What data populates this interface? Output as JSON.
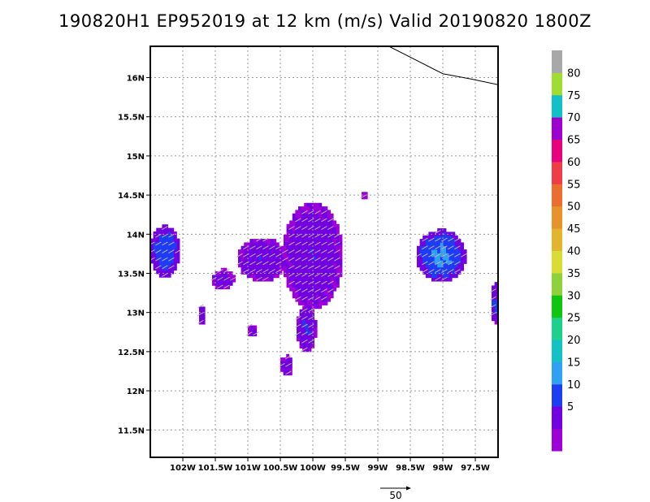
{
  "title": "190820H1 EP952019 at 12 km (m/s) Valid 20190820  1800Z",
  "chart_data": {
    "type": "heatmap",
    "title": "190820H1 EP952019 at 12 km (m/s) Valid 20190820  1800Z",
    "xlabel": "",
    "ylabel": "",
    "x_axis": {
      "unit": "longitude",
      "ticks": [
        -102,
        -101.5,
        -101,
        -100.5,
        -100,
        -99.5,
        -99,
        -98.5,
        -98,
        -97.5
      ],
      "tick_labels": [
        "102W",
        "101.5W",
        "101W",
        "100.5W",
        "100W",
        "99.5W",
        "99W",
        "98.5W",
        "98W",
        "97.5W"
      ],
      "range": [
        -102.5,
        -97.15
      ]
    },
    "y_axis": {
      "unit": "latitude",
      "ticks": [
        11.5,
        12,
        12.5,
        13,
        13.5,
        14,
        14.5,
        15,
        15.5,
        16
      ],
      "tick_labels": [
        "11.5N",
        "12N",
        "12.5N",
        "13N",
        "13.5N",
        "14N",
        "14.5N",
        "15N",
        "15.5N",
        "16N"
      ],
      "range": [
        11.15,
        16.4
      ]
    },
    "grid": true,
    "colorbar": {
      "labels": [
        "5",
        "10",
        "15",
        "20",
        "25",
        "30",
        "35",
        "40",
        "45",
        "50",
        "55",
        "60",
        "65",
        "70",
        "75",
        "80"
      ],
      "bounds": [
        5,
        10,
        15,
        20,
        25,
        30,
        35,
        40,
        45,
        50,
        55,
        60,
        65,
        70,
        75,
        80
      ],
      "colors": [
        "#9e00d8",
        "#7200e0",
        "#1f3cf5",
        "#2fa1f5",
        "#13c3c3",
        "#1ed08d",
        "#0fc60f",
        "#8ed23a",
        "#d8dc33",
        "#e4b42c",
        "#e8922a",
        "#ec6e2e",
        "#f03c46",
        "#e8007c",
        "#9e00d0",
        "#12c0c8",
        "#a0dc32",
        "#a8a8a8"
      ],
      "placement": "right"
    },
    "reference_vector": {
      "label": "50"
    },
    "wind_regions": [
      {
        "lon_min": -102.5,
        "lon_max": -102.05,
        "lat_min": 13.45,
        "lat_max": 14.1,
        "max_speed": 14
      },
      {
        "lon_min": -101.15,
        "lon_max": -100.4,
        "lat_min": 13.4,
        "lat_max": 13.95,
        "max_speed": 9
      },
      {
        "lon_min": -101.55,
        "lon_max": -101.2,
        "lat_min": 13.3,
        "lat_max": 13.55,
        "max_speed": 8
      },
      {
        "lon_min": -100.45,
        "lon_max": -99.55,
        "lat_min": 13.05,
        "lat_max": 14.4,
        "max_speed": 9
      },
      {
        "lon_min": -100.25,
        "lon_max": -99.95,
        "lat_min": 12.5,
        "lat_max": 13.1,
        "max_speed": 10
      },
      {
        "lon_min": -100.5,
        "lon_max": -100.3,
        "lat_min": 12.2,
        "lat_max": 12.45,
        "max_speed": 8
      },
      {
        "lon_min": -98.4,
        "lon_max": -97.65,
        "lat_min": 13.4,
        "lat_max": 14.05,
        "max_speed": 16
      },
      {
        "lon_min": -97.25,
        "lon_max": -97.15,
        "lat_min": 12.85,
        "lat_max": 13.4,
        "max_speed": 12
      },
      {
        "lon_min": -101.75,
        "lon_max": -101.65,
        "lat_min": 12.85,
        "lat_max": 13.1,
        "max_speed": 10
      },
      {
        "lon_min": -101.0,
        "lon_max": -100.85,
        "lat_min": 12.7,
        "lat_max": 12.85,
        "max_speed": 7
      },
      {
        "lon_min": -99.25,
        "lon_max": -99.15,
        "lat_min": 14.45,
        "lat_max": 14.55,
        "max_speed": 6
      }
    ],
    "coastline": [
      [
        -98.83,
        16.4
      ],
      [
        -98.0,
        16.05
      ],
      [
        -97.55,
        15.98
      ],
      [
        -97.15,
        15.91
      ]
    ]
  }
}
